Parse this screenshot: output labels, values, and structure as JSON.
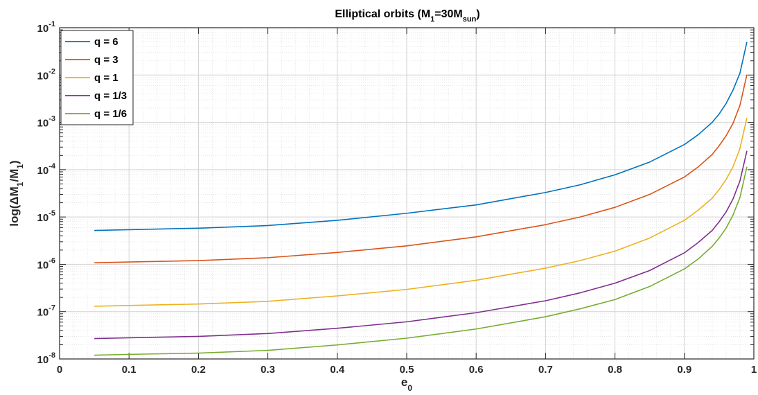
{
  "chart_data": {
    "type": "line",
    "title": "Elliptical orbits (M1=30Msun)",
    "title_parts": {
      "prefix": "Elliptical orbits (M",
      "sub1": "1",
      "middle": "=30M",
      "sub2": "sun",
      "suffix": ")"
    },
    "xlabel": "e0",
    "xlabel_parts": {
      "main": "e",
      "sub": "0"
    },
    "ylabel": "log(ΔM1/M1)",
    "ylabel_parts": {
      "prefix": "log(",
      "delta": "Δ",
      "m": "M",
      "sub1": "1",
      "slash": "/M",
      "sub2": "1",
      "suffix": ")"
    },
    "xlim": [
      0,
      1
    ],
    "ylim": [
      1e-08,
      0.1
    ],
    "yscale": "log",
    "grid": true,
    "minor_grid": true,
    "legend_position": "top-left",
    "x_ticks": [
      "0",
      "0.1",
      "0.2",
      "0.3",
      "0.4",
      "0.5",
      "0.6",
      "0.7",
      "0.8",
      "0.9",
      "1"
    ],
    "y_ticks": [
      {
        "base": "10",
        "exp": "-8"
      },
      {
        "base": "10",
        "exp": "-7"
      },
      {
        "base": "10",
        "exp": "-6"
      },
      {
        "base": "10",
        "exp": "-5"
      },
      {
        "base": "10",
        "exp": "-4"
      },
      {
        "base": "10",
        "exp": "-3"
      },
      {
        "base": "10",
        "exp": "-2"
      },
      {
        "base": "10",
        "exp": "-1"
      }
    ],
    "x": [
      0.05,
      0.1,
      0.2,
      0.3,
      0.4,
      0.5,
      0.6,
      0.7,
      0.75,
      0.8,
      0.85,
      0.9,
      0.92,
      0.94,
      0.95,
      0.96,
      0.97,
      0.98,
      0.99
    ],
    "series": [
      {
        "name": "q = 6",
        "color": "#0072BD",
        "values": [
          5.2e-06,
          5.4e-06,
          5.8e-06,
          6.6e-06,
          8.5e-06,
          1.2e-05,
          1.8e-05,
          3.3e-05,
          4.8e-05,
          7.8e-05,
          0.000145,
          0.00034,
          0.00055,
          0.001,
          0.0015,
          0.0025,
          0.0048,
          0.011,
          0.05
        ]
      },
      {
        "name": "q = 3",
        "color": "#D95319",
        "values": [
          1.08e-06,
          1.12e-06,
          1.2e-06,
          1.38e-06,
          1.78e-06,
          2.45e-06,
          3.8e-06,
          6.9e-06,
          1e-05,
          1.6e-05,
          3e-05,
          7e-05,
          0.000115,
          0.00021,
          0.00032,
          0.00052,
          0.00095,
          0.0023,
          0.0102
        ]
      },
      {
        "name": "q = 1",
        "color": "#EDB120",
        "values": [
          1.3e-07,
          1.35e-07,
          1.45e-07,
          1.65e-07,
          2.15e-07,
          2.95e-07,
          4.6e-07,
          8.3e-07,
          1.2e-06,
          1.9e-06,
          3.6e-06,
          8.5e-06,
          1.4e-05,
          2.5e-05,
          3.8e-05,
          6.2e-05,
          0.000115,
          0.00028,
          0.00125
        ]
      },
      {
        "name": "q = 1/3",
        "color": "#7E2F8E",
        "values": [
          2.7e-08,
          2.8e-08,
          3e-08,
          3.45e-08,
          4.45e-08,
          6.1e-08,
          9.5e-08,
          1.7e-07,
          2.5e-07,
          4e-07,
          7.4e-07,
          1.75e-06,
          2.9e-06,
          5.2e-06,
          7.9e-06,
          1.28e-05,
          2.4e-05,
          5.8e-05,
          0.00025
        ]
      },
      {
        "name": "q = 1/6",
        "color": "#77AC30",
        "values": [
          1.2e-08,
          1.25e-08,
          1.33e-08,
          1.52e-08,
          1.98e-08,
          2.75e-08,
          4.3e-08,
          7.8e-08,
          1.15e-07,
          1.8e-07,
          3.4e-07,
          8e-07,
          1.3e-06,
          2.4e-06,
          3.6e-06,
          5.8e-06,
          1.1e-05,
          2.6e-05,
          0.000115
        ]
      }
    ]
  }
}
